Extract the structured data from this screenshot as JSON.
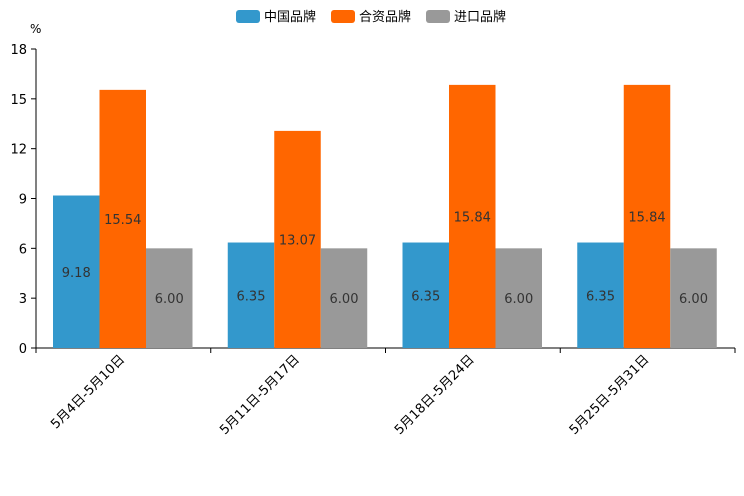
{
  "chart_data": {
    "type": "bar",
    "title": "",
    "unit": "%",
    "xlabel": "",
    "ylabel": "",
    "ylim": [
      0,
      18
    ],
    "yticks": [
      0,
      3,
      6,
      9,
      12,
      15,
      18
    ],
    "grid": false,
    "legend_position": "top-center",
    "categories": [
      "5月4日-5月10日",
      "5月11日-5月17日",
      "5月18日-5月24日",
      "5月25日-5月31日"
    ],
    "series": [
      {
        "name": "中国品牌",
        "color": "#3398cc",
        "values": [
          9.18,
          6.35,
          6.35,
          6.35
        ],
        "labels": [
          "9.18",
          "6.35",
          "6.35",
          "6.35"
        ]
      },
      {
        "name": "合资品牌",
        "color": "#ff6600",
        "values": [
          15.54,
          13.07,
          15.84,
          15.84
        ],
        "labels": [
          "15.54",
          "13.07",
          "15.84",
          "15.84"
        ]
      },
      {
        "name": "进口品牌",
        "color": "#999999",
        "values": [
          6.0,
          6.0,
          6.0,
          6.0
        ],
        "labels": [
          "6.00",
          "6.00",
          "6.00",
          "6.00"
        ]
      }
    ]
  }
}
